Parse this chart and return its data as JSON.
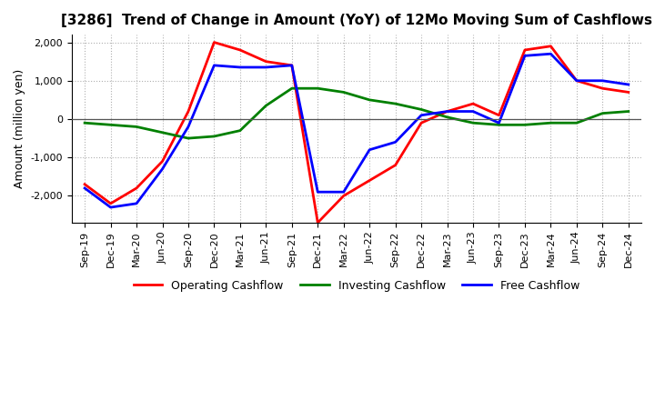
{
  "title": "[3286]  Trend of Change in Amount (YoY) of 12Mo Moving Sum of Cashflows",
  "ylabel": "Amount (million yen)",
  "x_labels": [
    "Sep-19",
    "Dec-19",
    "Mar-20",
    "Jun-20",
    "Sep-20",
    "Dec-20",
    "Mar-21",
    "Jun-21",
    "Sep-21",
    "Dec-21",
    "Mar-22",
    "Jun-22",
    "Sep-22",
    "Dec-22",
    "Mar-23",
    "Jun-23",
    "Sep-23",
    "Dec-23",
    "Mar-24",
    "Jun-24",
    "Sep-24",
    "Dec-24"
  ],
  "operating": [
    -1700,
    -2200,
    -1800,
    -1100,
    200,
    2000,
    1800,
    1500,
    1400,
    -2700,
    -2000,
    -1600,
    -1200,
    -100,
    200,
    400,
    100,
    1800,
    1900,
    1000,
    800,
    700
  ],
  "investing": [
    -100,
    -150,
    -200,
    -350,
    -500,
    -450,
    -300,
    350,
    800,
    800,
    700,
    500,
    400,
    250,
    50,
    -100,
    -150,
    -150,
    -100,
    -100,
    150,
    200
  ],
  "free": [
    -1800,
    -2300,
    -2200,
    -1300,
    -200,
    1400,
    1350,
    1350,
    1400,
    -1900,
    -1900,
    -800,
    -600,
    100,
    200,
    200,
    -100,
    1650,
    1700,
    1000,
    1000,
    900
  ],
  "ylim": [
    -2700,
    2200
  ],
  "yticks": [
    -2000,
    -1000,
    0,
    1000,
    2000
  ],
  "operating_color": "#ff0000",
  "investing_color": "#008000",
  "free_color": "#0000ff",
  "line_width": 2.0,
  "grid_color": "#b0b0b0",
  "background_color": "#ffffff",
  "title_fontsize": 11,
  "label_fontsize": 9,
  "tick_fontsize": 8,
  "legend_labels": [
    "Operating Cashflow",
    "Investing Cashflow",
    "Free Cashflow"
  ]
}
